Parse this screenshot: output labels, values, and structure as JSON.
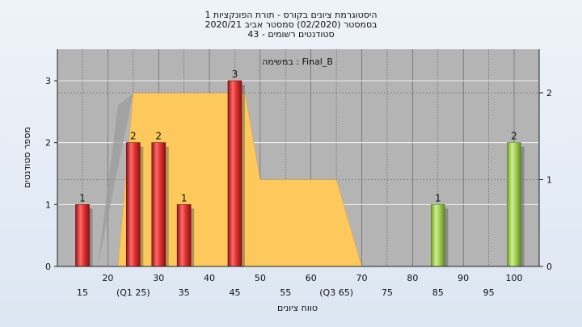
{
  "colors": {
    "plot_bg": "#b4b4b4",
    "area_fill": "#fdc95c",
    "area_shadow": "#9a9a9a",
    "bar_red": "#d83a3a",
    "bar_green": "#9ccc55",
    "grid": "#5a5a5a"
  },
  "chart_data": {
    "type": "bar",
    "title": [
      "היסטוגרמת ציונים בקורס - תורת הפונקציות 1",
      "בסמסטר  (02/2020)  סמסטר אביב 2020/21",
      "סטודנטים רשומים - 43"
    ],
    "legend": "במשימה : Final_B",
    "xlabel": "טווח ציונים",
    "ylabel": "מספר סטודנטים",
    "ylim": [
      0,
      3.4
    ],
    "yticks": [
      "0",
      "1",
      "2",
      "3"
    ],
    "y2ticks": [
      "0",
      "1",
      "2"
    ],
    "xticks_row1": [
      "20",
      "30",
      "40",
      "50",
      "60",
      "70",
      "80",
      "90",
      "100"
    ],
    "xticks_row2": [
      "15",
      "(Q1 25)",
      "35",
      "45",
      "55",
      "(Q3 65)",
      "75",
      "85",
      "95"
    ],
    "bars": [
      {
        "x": 15,
        "value": 1,
        "label": "1",
        "color": "red"
      },
      {
        "x": 25,
        "value": 2,
        "label": "2",
        "color": "red"
      },
      {
        "x": 30,
        "value": 2,
        "label": "2",
        "color": "red"
      },
      {
        "x": 35,
        "value": 1,
        "label": "1",
        "color": "red"
      },
      {
        "x": 45,
        "value": 3,
        "label": "3",
        "color": "red"
      },
      {
        "x": 85,
        "value": 1,
        "label": "1",
        "color": "green"
      },
      {
        "x": 100,
        "value": 2,
        "label": "2",
        "color": "green"
      }
    ],
    "quartile_area": [
      {
        "x": 22,
        "y": 0
      },
      {
        "x": 25,
        "y": 2.8
      },
      {
        "x": 47,
        "y": 2.8
      },
      {
        "x": 50,
        "y": 1.4
      },
      {
        "x": 65,
        "y": 1.4
      },
      {
        "x": 70,
        "y": 0
      }
    ]
  }
}
